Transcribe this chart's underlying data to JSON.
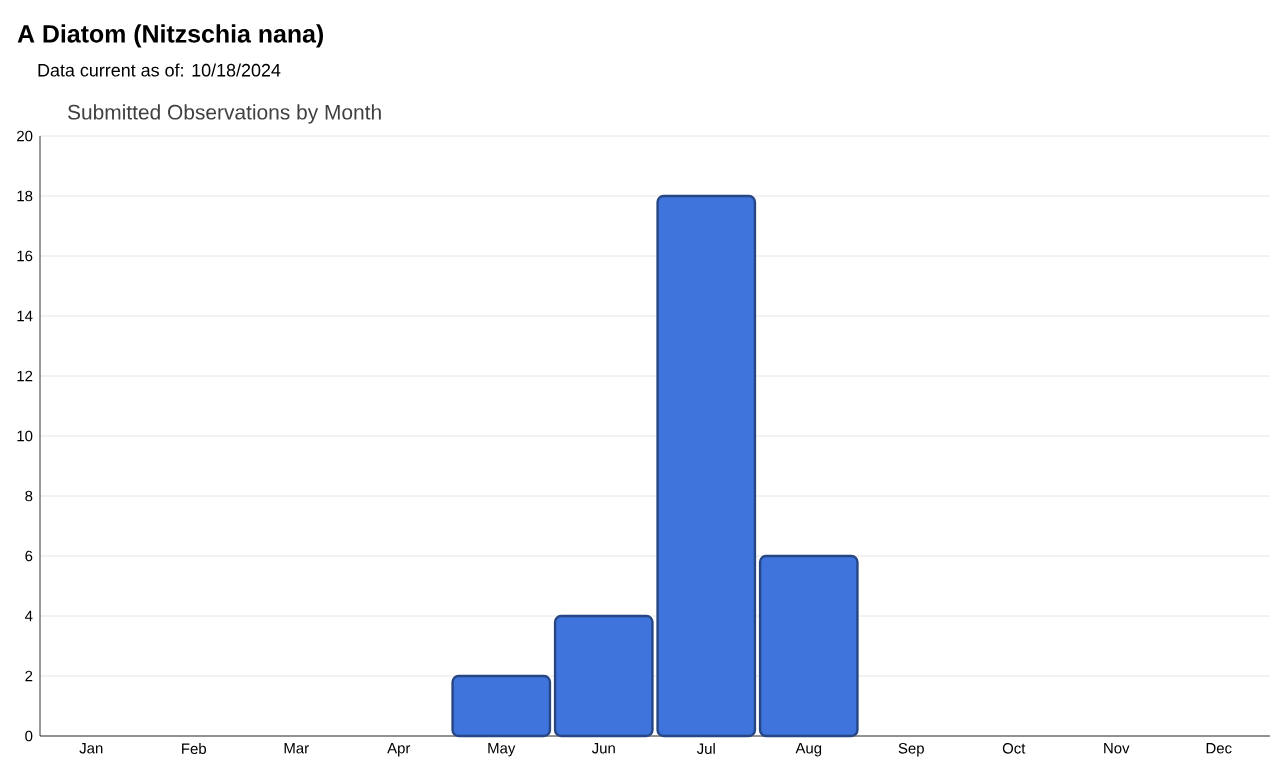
{
  "chart_data": {
    "type": "bar",
    "title": "A Diatom   (Nitzschia nana)",
    "subtitle": "Data current as of: 10/18/2024",
    "annotations": [
      "Submitted Observations by Month"
    ],
    "categories": [
      "Jan",
      "Feb",
      "Mar",
      "Apr",
      "May",
      "Jun",
      "Jul",
      "Aug",
      "Sep",
      "Oct",
      "Nov",
      "Dec"
    ],
    "values": [
      0,
      0,
      0,
      0,
      2,
      4,
      18,
      6,
      0,
      0,
      0,
      0
    ],
    "color": "#3f74dc",
    "ylim": [
      0,
      20
    ],
    "yticks": [
      0,
      2,
      4,
      6,
      8,
      10,
      12,
      14,
      16,
      18,
      20
    ],
    "grid": "y"
  }
}
